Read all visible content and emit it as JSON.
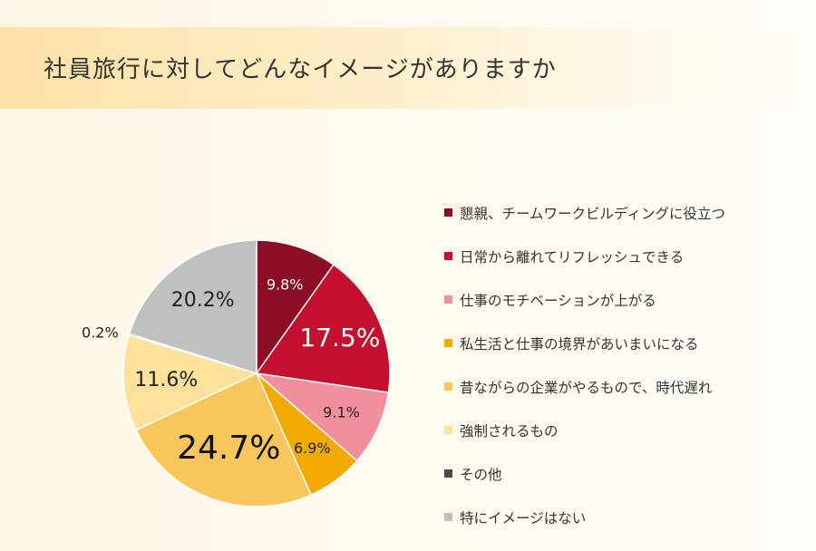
{
  "title": "社員旅行に対してどんなイメージがありますか",
  "chart_data": {
    "type": "pie",
    "start_angle": 0,
    "direction": "clockwise",
    "slices": [
      {
        "label": "懇親、チームワークビルディングに役立つ",
        "value": 9.8,
        "display": "9.8%",
        "color": "#8b0e24",
        "label_color": "#ffffff",
        "label_size": "small"
      },
      {
        "label": "日常から離れてリフレッシュできる",
        "value": 17.5,
        "display": "17.5%",
        "color": "#c4102f",
        "label_color": "#ffffff",
        "label_size": "large"
      },
      {
        "label": "仕事のモチベーションが上がる",
        "value": 9.1,
        "display": "9.1%",
        "color": "#f28f9d",
        "label_color": "#222222",
        "label_size": "small"
      },
      {
        "label": "私生活と仕事の境界があいまいになる",
        "value": 6.9,
        "display": "6.9%",
        "color": "#f2a900",
        "label_color": "#222222",
        "label_size": "small"
      },
      {
        "label": "昔ながらの企業がやるもので、時代遅れ",
        "value": 24.7,
        "display": "24.7%",
        "color": "#f9c65c",
        "label_color": "#111111",
        "label_size": "xlarge"
      },
      {
        "label": "強制されるもの",
        "value": 11.6,
        "display": "11.6%",
        "color": "#fde19a",
        "label_color": "#222222",
        "label_size": "medium"
      },
      {
        "label": "その他",
        "value": 0.2,
        "display": "0.2%",
        "color": "#4a4a4a",
        "label_color": "#222222",
        "label_size": "small",
        "label_outside": true
      },
      {
        "label": "特にイメージはない",
        "value": 20.2,
        "display": "20.2%",
        "color": "#c0c0c0",
        "label_color": "#222222",
        "label_size": "medium"
      }
    ],
    "legend_position": "right"
  }
}
